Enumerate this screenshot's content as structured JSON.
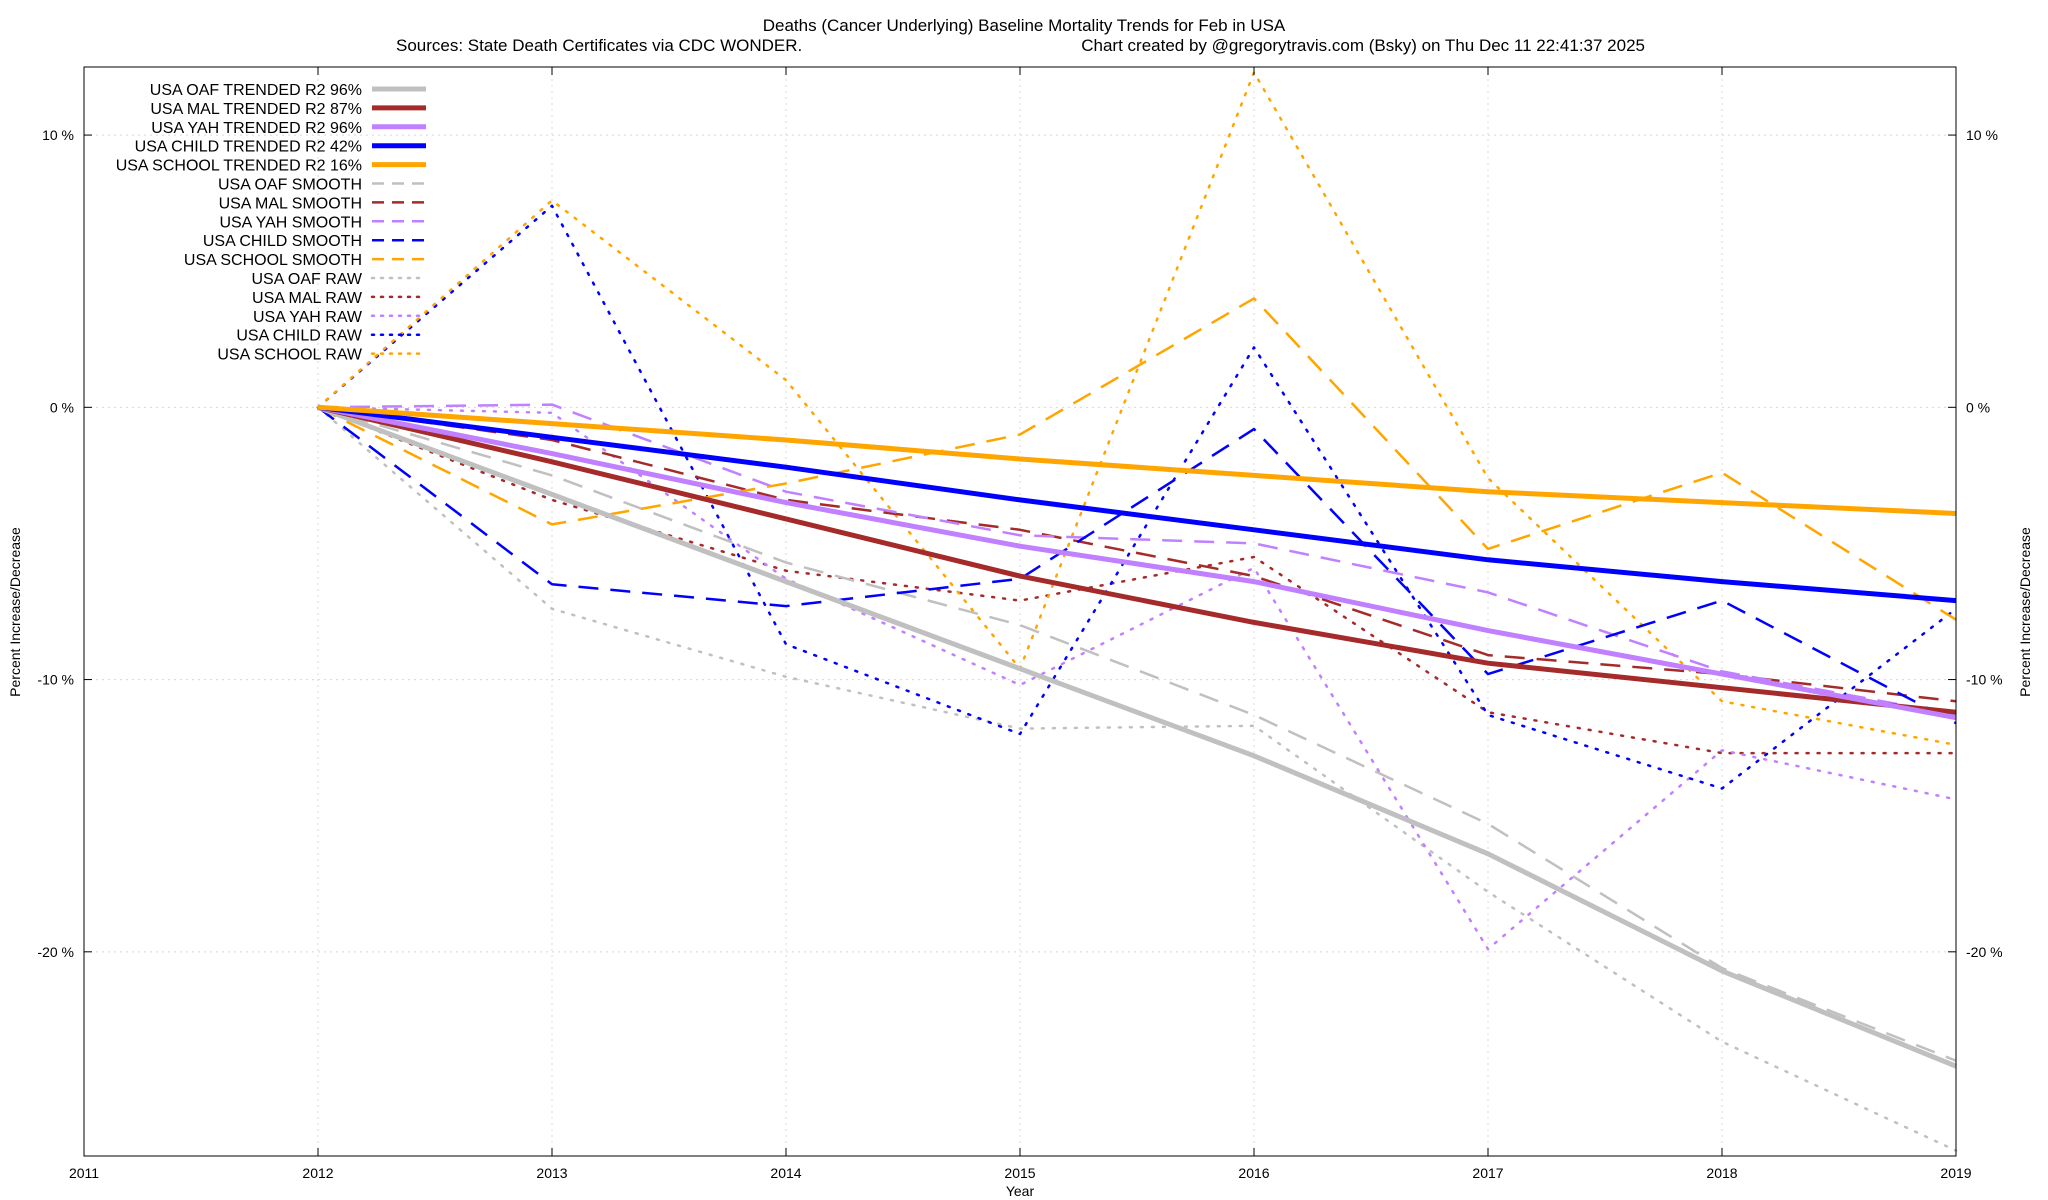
{
  "chart_data": {
    "type": "line",
    "title": "Deaths (Cancer Underlying)  Baseline Mortality Trends for Feb in USA",
    "subtitle_left": "Sources: State Death Certificates via CDC WONDER.",
    "subtitle_right": "Chart created by @gregorytravis.com (Bsky) on Thu Dec 11 22:41:37 2025",
    "xlabel": "Year",
    "ylabel": "Percent Increase/Decrease",
    "xlim": [
      2011,
      2019
    ],
    "ylim": [
      -27.5,
      12.5
    ],
    "xticks": [
      2011,
      2012,
      2013,
      2014,
      2015,
      2016,
      2017,
      2018,
      2019
    ],
    "xtick_labels": [
      "2011",
      "2012",
      "2013",
      "2014",
      "2015",
      "2016",
      "2017",
      "2018",
      "2019"
    ],
    "yticks": [
      10,
      0,
      -10,
      -20
    ],
    "ytick_labels": [
      "10 %",
      "0 %",
      "-10 %",
      "-20 %"
    ],
    "grid": true,
    "legend_position": "top-left",
    "x": [
      2012,
      2013,
      2014,
      2015,
      2016,
      2017,
      2018,
      2019
    ],
    "series": [
      {
        "name": "USA OAF TRENDED R2  96%",
        "color": "#c0c0c0",
        "style": "solid",
        "values": [
          0,
          -3.2,
          -6.4,
          -9.6,
          -12.8,
          -16.4,
          -20.7,
          -24.2
        ]
      },
      {
        "name": "USA MAL TRENDED R2  87%",
        "color": "#a52a2a",
        "style": "solid",
        "values": [
          0,
          -2.0,
          -4.1,
          -6.2,
          -7.9,
          -9.4,
          -10.3,
          -11.2
        ]
      },
      {
        "name": "USA YAH TRENDED R2  96%",
        "color": "#c080ff",
        "style": "solid",
        "values": [
          0,
          -1.7,
          -3.5,
          -5.1,
          -6.4,
          -8.2,
          -9.8,
          -11.4
        ]
      },
      {
        "name": "USA CHILD TRENDED R2  42%",
        "color": "#0000ff",
        "style": "solid",
        "values": [
          0,
          -1.1,
          -2.2,
          -3.4,
          -4.5,
          -5.6,
          -6.4,
          -7.1
        ]
      },
      {
        "name": "USA SCHOOL TRENDED R2  16%",
        "color": "#ffa500",
        "style": "solid",
        "values": [
          0,
          -0.6,
          -1.2,
          -1.9,
          -2.5,
          -3.1,
          -3.5,
          -3.9
        ]
      },
      {
        "name": "USA OAF SMOOTH",
        "color": "#c0c0c0",
        "style": "dashed",
        "values": [
          0,
          -2.5,
          -5.7,
          -8.0,
          -11.3,
          -15.3,
          -20.6,
          -24.0
        ]
      },
      {
        "name": "USA MAL SMOOTH",
        "color": "#a52a2a",
        "style": "dashed",
        "values": [
          0,
          -1.2,
          -3.4,
          -4.5,
          -6.2,
          -9.1,
          -9.8,
          -10.8
        ]
      },
      {
        "name": "USA YAH SMOOTH",
        "color": "#c080ff",
        "style": "dashed",
        "values": [
          0,
          0.1,
          -3.1,
          -4.7,
          -5.0,
          -6.8,
          -9.7,
          -11.3
        ]
      },
      {
        "name": "USA CHILD SMOOTH",
        "color": "#0000ff",
        "style": "dashed",
        "values": [
          0,
          -6.5,
          -7.3,
          -6.3,
          -0.8,
          -9.8,
          -7.1,
          -11.6
        ]
      },
      {
        "name": "USA SCHOOL SMOOTH",
        "color": "#ffa500",
        "style": "dashed",
        "values": [
          0,
          -4.3,
          -2.8,
          -1.0,
          4.0,
          -5.2,
          -2.4,
          -7.8
        ]
      },
      {
        "name": "USA OAF RAW",
        "color": "#c0c0c0",
        "style": "dotted",
        "values": [
          0,
          -7.4,
          -9.9,
          -11.8,
          -11.7,
          -17.8,
          -23.3,
          -27.3
        ]
      },
      {
        "name": "USA MAL RAW",
        "color": "#a52a2a",
        "style": "dotted",
        "values": [
          0,
          -3.4,
          -6.0,
          -7.1,
          -5.5,
          -11.2,
          -12.7,
          -12.7
        ]
      },
      {
        "name": "USA YAH RAW",
        "color": "#c080ff",
        "style": "dotted",
        "values": [
          0,
          -0.2,
          -6.3,
          -10.2,
          -5.9,
          -19.9,
          -12.6,
          -14.4
        ]
      },
      {
        "name": "USA CHILD RAW",
        "color": "#0000ff",
        "style": "dotted",
        "values": [
          0,
          7.4,
          -8.7,
          -12.0,
          2.2,
          -11.3,
          -14.0,
          -7.4
        ]
      },
      {
        "name": "USA SCHOOL RAW",
        "color": "#ffa500",
        "style": "dotted",
        "values": [
          0,
          7.6,
          1.0,
          -9.6,
          12.3,
          -2.6,
          -10.8,
          -12.4
        ]
      }
    ]
  }
}
